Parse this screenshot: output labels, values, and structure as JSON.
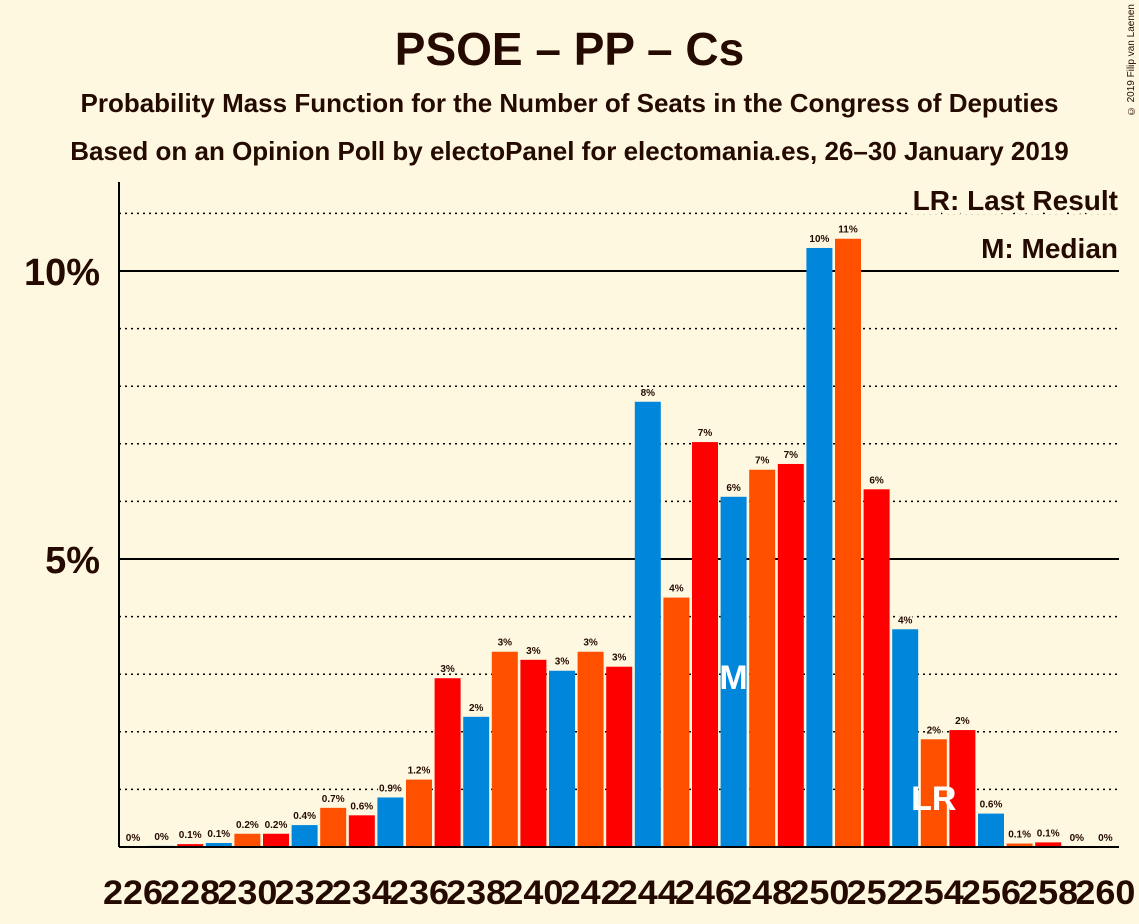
{
  "chart_data": {
    "type": "bar",
    "title": "PSOE – PP – Cs",
    "subtitle1": "Probability Mass Function for the Number of Seats in the Congress of Deputies",
    "subtitle2": "Based on an Opinion Poll by electoPanel for electomania.es, 26–30 January 2019",
    "copyright": "© 2019 Filip van Laenen",
    "legend": [
      "LR: Last Result",
      "M: Median"
    ],
    "legend_placement": "top-right",
    "y_ticks": [
      {
        "value": 5,
        "label": "5%"
      },
      {
        "value": 10,
        "label": "10%"
      }
    ],
    "x_tick_labels": [
      "226",
      "228",
      "230",
      "232",
      "234",
      "236",
      "238",
      "240",
      "242",
      "244",
      "246",
      "248",
      "250",
      "252",
      "254",
      "256",
      "258",
      "260"
    ],
    "ylim": [
      0,
      11.5
    ],
    "grid": "dotted every 1%",
    "colors": {
      "blue": "#0087DC",
      "orange": "#FF5000",
      "red": "#FF0000",
      "text": "#240a00",
      "background": "#FFF8E1"
    },
    "median_seat": 247,
    "last_result_seat": 254,
    "median_marker": "M",
    "last_result_marker": "LR",
    "bars": [
      {
        "seat": 226,
        "value": 0.0,
        "label": "0%",
        "color": "#FF0000"
      },
      {
        "seat": 227,
        "value": 0.02,
        "label": "0%",
        "color": "#0087DC"
      },
      {
        "seat": 228,
        "value": 0.05,
        "label": "0.1%",
        "color": "#FF0000"
      },
      {
        "seat": 229,
        "value": 0.07,
        "label": "0.1%",
        "color": "#0087DC"
      },
      {
        "seat": 230,
        "value": 0.23,
        "label": "0.2%",
        "color": "#FF5000"
      },
      {
        "seat": 231,
        "value": 0.23,
        "label": "0.2%",
        "color": "#FF0000"
      },
      {
        "seat": 232,
        "value": 0.38,
        "label": "0.4%",
        "color": "#0087DC"
      },
      {
        "seat": 233,
        "value": 0.68,
        "label": "0.7%",
        "color": "#FF5000"
      },
      {
        "seat": 234,
        "value": 0.55,
        "label": "0.6%",
        "color": "#FF0000"
      },
      {
        "seat": 235,
        "value": 0.86,
        "label": "0.9%",
        "color": "#0087DC"
      },
      {
        "seat": 236,
        "value": 1.17,
        "label": "1.2%",
        "color": "#FF5000"
      },
      {
        "seat": 237,
        "value": 2.93,
        "label": "3%",
        "color": "#FF0000"
      },
      {
        "seat": 238,
        "value": 2.26,
        "label": "2%",
        "color": "#0087DC"
      },
      {
        "seat": 239,
        "value": 3.39,
        "label": "3%",
        "color": "#FF5000"
      },
      {
        "seat": 240,
        "value": 3.25,
        "label": "3%",
        "color": "#FF0000"
      },
      {
        "seat": 241,
        "value": 3.06,
        "label": "3%",
        "color": "#0087DC"
      },
      {
        "seat": 242,
        "value": 3.39,
        "label": "3%",
        "color": "#FF5000"
      },
      {
        "seat": 243,
        "value": 3.13,
        "label": "3%",
        "color": "#FF0000"
      },
      {
        "seat": 244,
        "value": 7.73,
        "label": "8%",
        "color": "#0087DC"
      },
      {
        "seat": 245,
        "value": 4.33,
        "label": "4%",
        "color": "#FF5000"
      },
      {
        "seat": 246,
        "value": 7.03,
        "label": "7%",
        "color": "#FF0000"
      },
      {
        "seat": 247,
        "value": 6.08,
        "label": "6%",
        "color": "#0087DC"
      },
      {
        "seat": 248,
        "value": 6.55,
        "label": "7%",
        "color": "#FF5000"
      },
      {
        "seat": 249,
        "value": 6.65,
        "label": "7%",
        "color": "#FF0000"
      },
      {
        "seat": 250,
        "value": 10.4,
        "label": "10%",
        "color": "#0087DC"
      },
      {
        "seat": 251,
        "value": 10.56,
        "label": "11%",
        "color": "#FF5000"
      },
      {
        "seat": 252,
        "value": 6.21,
        "label": "6%",
        "color": "#FF0000"
      },
      {
        "seat": 253,
        "value": 3.78,
        "label": "4%",
        "color": "#0087DC"
      },
      {
        "seat": 254,
        "value": 1.87,
        "label": "2%",
        "color": "#FF5000"
      },
      {
        "seat": 255,
        "value": 2.03,
        "label": "2%",
        "color": "#FF0000"
      },
      {
        "seat": 256,
        "value": 0.58,
        "label": "0.6%",
        "color": "#0087DC"
      },
      {
        "seat": 257,
        "value": 0.06,
        "label": "0.1%",
        "color": "#FF5000"
      },
      {
        "seat": 258,
        "value": 0.08,
        "label": "0.1%",
        "color": "#FF0000"
      },
      {
        "seat": 259,
        "value": 0.0,
        "label": "0%",
        "color": "#0087DC"
      },
      {
        "seat": 260,
        "value": 0.0,
        "label": "0%",
        "color": "#FF5000"
      }
    ]
  }
}
